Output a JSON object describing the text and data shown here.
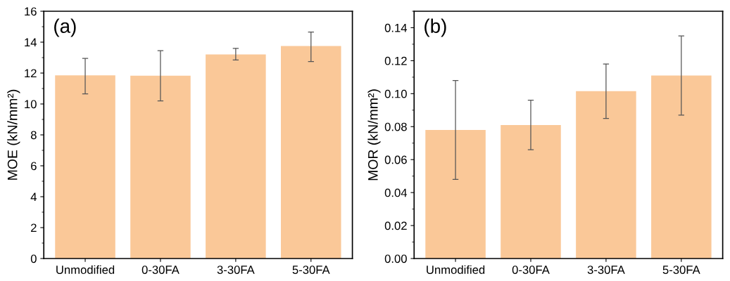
{
  "chart_data": [
    {
      "type": "bar",
      "categories": [
        "Unmodified",
        "0-30FA",
        "3-30FA",
        "5-30FA"
      ],
      "ylabel": "MOE (kN/mm²)",
      "annotations": [
        "(a)"
      ],
      "color": "#fac898",
      "values": [
        11.85,
        11.83,
        13.2,
        13.75
      ],
      "errors": [
        [
          10.65,
          12.95
        ],
        [
          10.2,
          13.45
        ],
        [
          12.85,
          13.6
        ],
        [
          12.75,
          14.65
        ]
      ],
      "ylim": [
        0,
        16
      ],
      "yticks": [
        0,
        2,
        4,
        6,
        8,
        10,
        12,
        14,
        16
      ],
      "grid": false
    },
    {
      "type": "bar",
      "categories": [
        "Unmodified",
        "0-30FA",
        "3-30FA",
        "5-30FA"
      ],
      "ylabel": "MOR (kN/mm²)",
      "annotations": [
        "(b)"
      ],
      "color": "#fac898",
      "values": [
        0.078,
        0.081,
        0.1015,
        0.111
      ],
      "errors": [
        [
          0.048,
          0.108
        ],
        [
          0.066,
          0.096
        ],
        [
          0.085,
          0.118
        ],
        [
          0.087,
          0.135
        ]
      ],
      "ylim": [
        0,
        0.15
      ],
      "yticks": [
        {
          "value": 0,
          "label": "0.00"
        },
        {
          "value": 0.02,
          "label": "0.02"
        },
        {
          "value": 0.04,
          "label": "0.04"
        },
        {
          "value": 0.06,
          "label": "0.06"
        },
        {
          "value": 0.08,
          "label": "0.08"
        },
        {
          "value": 0.1,
          "label": "0.10"
        },
        {
          "value": 0.12,
          "label": "0.12"
        },
        {
          "value": 0.14,
          "label": "0.14"
        }
      ],
      "grid": false
    }
  ]
}
